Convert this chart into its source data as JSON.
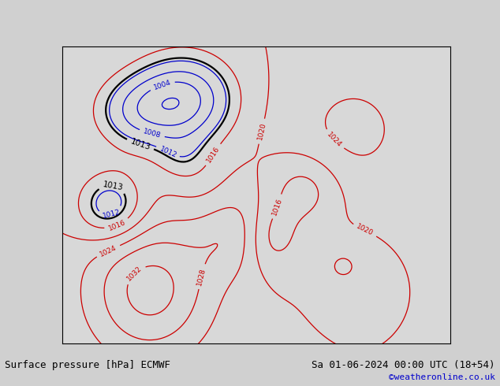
{
  "title_left": "Surface pressure [hPa] ECMWF",
  "title_right": "Sa 01-06-2024 00:00 UTC (18+54)",
  "copyright": "©weatheronline.co.uk",
  "sea_color": "#d8d8d8",
  "land_color": "#c8e8a0",
  "mountain_color": "#a0a0a0",
  "contour_low_color": "#0000cc",
  "contour_high_color": "#cc0000",
  "contour_13_color": "#000000",
  "label_fontsize": 6.5,
  "title_fontsize": 9,
  "copyright_fontsize": 8,
  "copyright_color": "#0000cc",
  "lon_min": -30,
  "lon_max": 50,
  "lat_min": 24,
  "lat_max": 74,
  "base_pressure": 1013.0,
  "contour_interval": 4,
  "contour_min": 988,
  "contour_max": 1036,
  "strip_color": "#d0d0d0"
}
